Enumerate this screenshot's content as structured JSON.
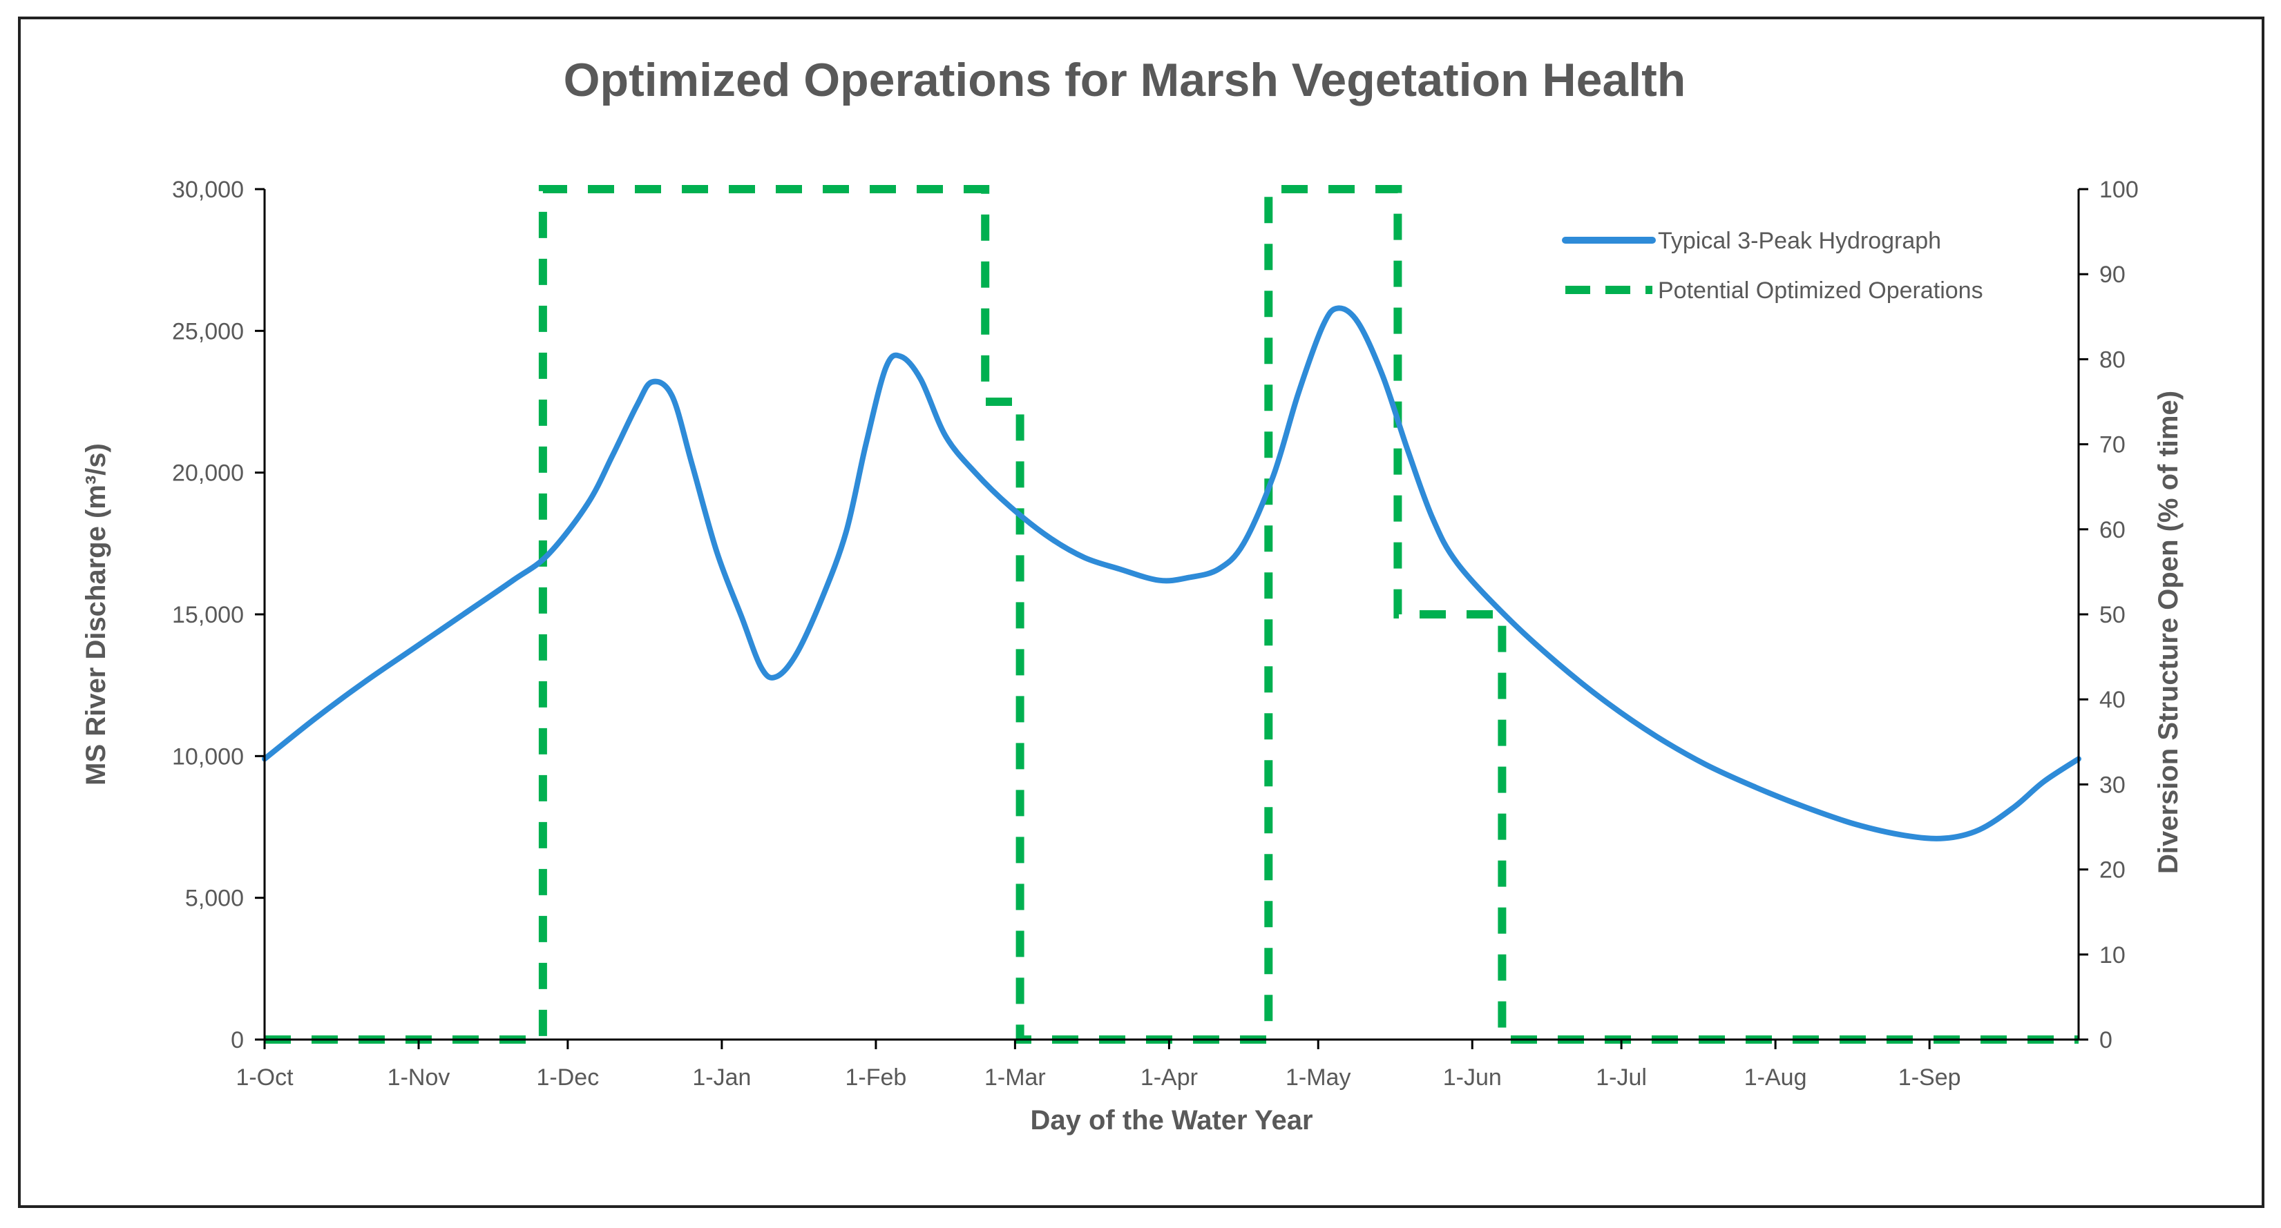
{
  "chart_data": {
    "type": "line",
    "title": "Optimized Operations for Marsh Vegetation Health",
    "xlabel": "Day of the Water Year",
    "ylabel_left": "MS River Discharge (m³/s)",
    "ylabel_right": "Diversion Structure Open (% of time)",
    "x_domain": [
      0,
      365
    ],
    "x_ticks": [
      {
        "label": "1-Oct",
        "day": 0
      },
      {
        "label": "1-Nov",
        "day": 31
      },
      {
        "label": "1-Dec",
        "day": 61
      },
      {
        "label": "1-Jan",
        "day": 92
      },
      {
        "label": "1-Feb",
        "day": 123
      },
      {
        "label": "1-Mar",
        "day": 151
      },
      {
        "label": "1-Apr",
        "day": 182
      },
      {
        "label": "1-May",
        "day": 212
      },
      {
        "label": "1-Jun",
        "day": 243
      },
      {
        "label": "1-Jul",
        "day": 273
      },
      {
        "label": "1-Aug",
        "day": 304
      },
      {
        "label": "1-Sep",
        "day": 335
      }
    ],
    "ylim_left": [
      0,
      30000
    ],
    "yticks_left": [
      {
        "value": 0,
        "label": "0"
      },
      {
        "value": 5000,
        "label": "5,000"
      },
      {
        "value": 10000,
        "label": "10,000"
      },
      {
        "value": 15000,
        "label": "15,000"
      },
      {
        "value": 20000,
        "label": "20,000"
      },
      {
        "value": 25000,
        "label": "25,000"
      },
      {
        "value": 30000,
        "label": "30,000"
      }
    ],
    "ylim_right": [
      0,
      100
    ],
    "yticks_right": [
      {
        "value": 0,
        "label": "0"
      },
      {
        "value": 10,
        "label": "10"
      },
      {
        "value": 20,
        "label": "20"
      },
      {
        "value": 30,
        "label": "30"
      },
      {
        "value": 40,
        "label": "40"
      },
      {
        "value": 50,
        "label": "50"
      },
      {
        "value": 60,
        "label": "60"
      },
      {
        "value": 70,
        "label": "70"
      },
      {
        "value": 80,
        "label": "80"
      },
      {
        "value": 90,
        "label": "90"
      },
      {
        "value": 100,
        "label": "100"
      }
    ],
    "grid": false,
    "legend_position": "top-right",
    "series": [
      {
        "name": "Typical 3-Peak Hydrograph",
        "axis": "left",
        "style": "solid",
        "color": "#2E8BD8",
        "points": [
          [
            0,
            9900
          ],
          [
            10,
            11300
          ],
          [
            20,
            12600
          ],
          [
            30,
            13800
          ],
          [
            40,
            15000
          ],
          [
            50,
            16200
          ],
          [
            57,
            17100
          ],
          [
            65,
            18900
          ],
          [
            70,
            20600
          ],
          [
            75,
            22400
          ],
          [
            78,
            23200
          ],
          [
            82,
            22700
          ],
          [
            86,
            20300
          ],
          [
            91,
            17200
          ],
          [
            96,
            14900
          ],
          [
            100,
            13100
          ],
          [
            103,
            12800
          ],
          [
            107,
            13600
          ],
          [
            112,
            15500
          ],
          [
            117,
            17900
          ],
          [
            121,
            21000
          ],
          [
            125,
            23700
          ],
          [
            128,
            24100
          ],
          [
            132,
            23300
          ],
          [
            137,
            21300
          ],
          [
            143,
            20000
          ],
          [
            150,
            18800
          ],
          [
            158,
            17700
          ],
          [
            165,
            17000
          ],
          [
            172,
            16600
          ],
          [
            180,
            16200
          ],
          [
            186,
            16300
          ],
          [
            192,
            16600
          ],
          [
            197,
            17500
          ],
          [
            203,
            19900
          ],
          [
            208,
            22800
          ],
          [
            213,
            25200
          ],
          [
            216,
            25800
          ],
          [
            220,
            25300
          ],
          [
            225,
            23400
          ],
          [
            230,
            20800
          ],
          [
            235,
            18400
          ],
          [
            240,
            16800
          ],
          [
            250,
            14900
          ],
          [
            260,
            13300
          ],
          [
            270,
            11900
          ],
          [
            280,
            10700
          ],
          [
            290,
            9700
          ],
          [
            300,
            8900
          ],
          [
            310,
            8200
          ],
          [
            320,
            7600
          ],
          [
            330,
            7200
          ],
          [
            338,
            7100
          ],
          [
            345,
            7400
          ],
          [
            352,
            8200
          ],
          [
            358,
            9100
          ],
          [
            365,
            9900
          ]
        ]
      },
      {
        "name": "Potential Optimized Operations",
        "axis": "right",
        "style": "dashed",
        "color": "#00B050",
        "points": [
          [
            0,
            0
          ],
          [
            56,
            0
          ],
          [
            56,
            100
          ],
          [
            145,
            100
          ],
          [
            145,
            75
          ],
          [
            152,
            75
          ],
          [
            152,
            0
          ],
          [
            202,
            0
          ],
          [
            202,
            100
          ],
          [
            228,
            100
          ],
          [
            228,
            50
          ],
          [
            249,
            50
          ],
          [
            249,
            0
          ],
          [
            365,
            0
          ]
        ]
      }
    ]
  }
}
